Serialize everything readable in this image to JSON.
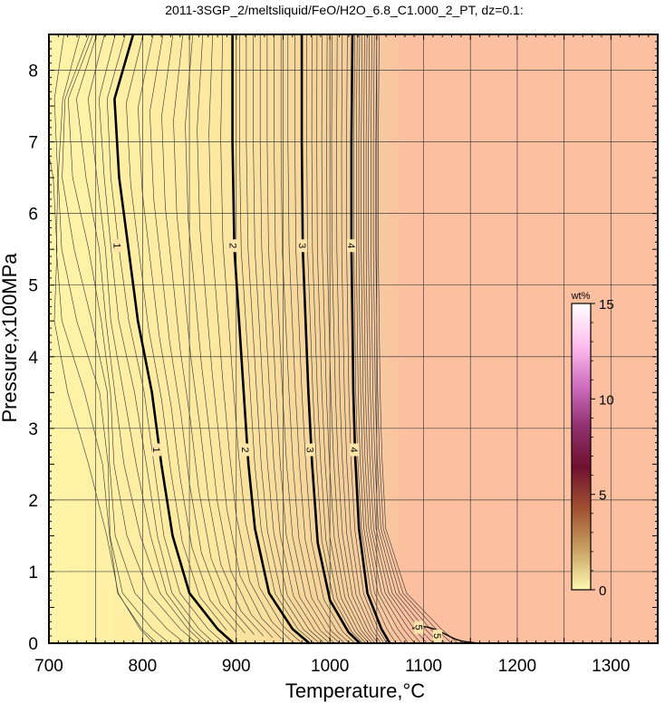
{
  "chart_data": {
    "type": "contour",
    "title": "2011-3SGP_2/meltsliquid/FeO/H2O_6.8_C1.000_2_PT, dz=0.1:",
    "xlabel": "Temperature,°C",
    "ylabel": "Pressure,x100MPa",
    "xlim": [
      700,
      1350
    ],
    "ylim": [
      0,
      8.5
    ],
    "x_ticks": [
      "700",
      "800",
      "900",
      "1000",
      "1100",
      "1200",
      "1300"
    ],
    "y_ticks": [
      "0",
      "1",
      "2",
      "3",
      "4",
      "5",
      "6",
      "7",
      "8"
    ],
    "grid": true,
    "contour_interval": 0.1,
    "labeled_contours": [
      {
        "level": "1",
        "points": [
          [
            790,
            8.5
          ],
          [
            770,
            7.6
          ],
          [
            775,
            6.5
          ],
          [
            785,
            5.5
          ],
          [
            795,
            4.5
          ],
          [
            810,
            3.5
          ],
          [
            820,
            2.5
          ],
          [
            832,
            1.5
          ],
          [
            850,
            0.7
          ],
          [
            880,
            0.2
          ],
          [
            897,
            0
          ]
        ]
      },
      {
        "level": "2",
        "points": [
          [
            896,
            8.5
          ],
          [
            896,
            7
          ],
          [
            898,
            5.5
          ],
          [
            903,
            4.5
          ],
          [
            908,
            3.5
          ],
          [
            913,
            2.5
          ],
          [
            920,
            1.6
          ],
          [
            935,
            0.7
          ],
          [
            960,
            0.2
          ],
          [
            978,
            0
          ]
        ]
      },
      {
        "level": "3",
        "points": [
          [
            970,
            8.5
          ],
          [
            970,
            7
          ],
          [
            971,
            5.5
          ],
          [
            974,
            4.5
          ],
          [
            977,
            3.5
          ],
          [
            981,
            2.5
          ],
          [
            987,
            1.4
          ],
          [
            1000,
            0.6
          ],
          [
            1020,
            0.15
          ],
          [
            1032,
            0
          ]
        ]
      },
      {
        "level": "4",
        "points": [
          [
            1024,
            8.5
          ],
          [
            1023,
            7
          ],
          [
            1023,
            5.5
          ],
          [
            1024,
            4.5
          ],
          [
            1025,
            3.5
          ],
          [
            1027,
            2.6
          ],
          [
            1031,
            1.6
          ],
          [
            1040,
            0.7
          ],
          [
            1055,
            0.2
          ],
          [
            1064,
            0
          ]
        ]
      }
    ],
    "contour_labels": [
      {
        "text": "1",
        "x": 773,
        "y": 5.55
      },
      {
        "text": "2",
        "x": 897,
        "y": 5.55
      },
      {
        "text": "3",
        "x": 971,
        "y": 5.55
      },
      {
        "text": "4",
        "x": 1023,
        "y": 5.55
      },
      {
        "text": "1",
        "x": 815,
        "y": 2.7
      },
      {
        "text": "2",
        "x": 910,
        "y": 2.7
      },
      {
        "text": "3",
        "x": 979,
        "y": 2.7
      },
      {
        "text": "4",
        "x": 1026,
        "y": 2.7
      },
      {
        "text": "5",
        "x": 1095,
        "y": 0.22
      },
      {
        "text": "5",
        "x": 1115,
        "y": 0.1
      }
    ],
    "region_colors": {
      "low": "#fff4a8",
      "mid": "#f5d29a",
      "high": "#fcc0a0"
    },
    "colorbar": {
      "unit": "wt%",
      "min": 0,
      "max": 15,
      "ticks": [
        "0",
        "5",
        "10",
        "15"
      ],
      "colors": [
        "#fffab0",
        "#c8a060",
        "#a05030",
        "#701030",
        "#903070",
        "#d070c0",
        "#ffc0f0",
        "#ffffff"
      ]
    }
  }
}
